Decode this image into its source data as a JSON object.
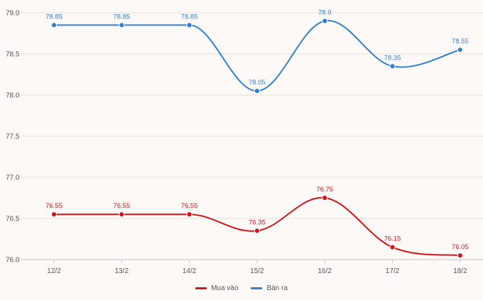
{
  "chart_data": {
    "type": "line",
    "categories": [
      "12/2",
      "13/2",
      "14/2",
      "15/2",
      "16/2",
      "17/2",
      "18/2"
    ],
    "series": [
      {
        "name": "Bán ra",
        "color": "#2f80d0",
        "values": [
          78.85,
          78.85,
          78.85,
          78.05,
          78.9,
          78.35,
          78.55
        ],
        "labels": [
          "78.85",
          "78.85",
          "78.85",
          "78.05",
          "78.9",
          "78.35",
          "78.55"
        ]
      },
      {
        "name": "Mua vào",
        "color": "#d0141c",
        "values": [
          76.55,
          76.55,
          76.55,
          76.35,
          76.75,
          76.15,
          76.05
        ],
        "labels": [
          "76.55",
          "76.55",
          "76.55",
          "76.35",
          "76.75",
          "76.15",
          "76.05"
        ]
      }
    ],
    "yticks": [
      "79.0",
      "78.5",
      "78.0",
      "77.5",
      "77.0",
      "76.5",
      "76.0"
    ],
    "ylim": [
      76.0,
      79.0
    ],
    "grid": true,
    "legend_position": "bottom-center",
    "legend": [
      {
        "label": "Mua vào",
        "color": "#d0141c"
      },
      {
        "label": "Bán ra",
        "color": "#2f80d0"
      }
    ]
  }
}
